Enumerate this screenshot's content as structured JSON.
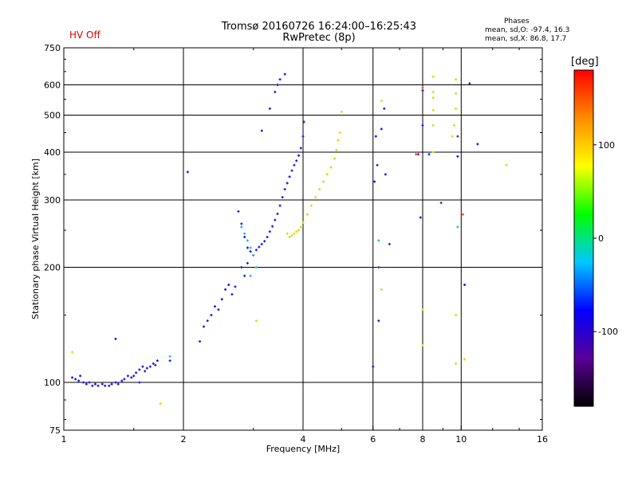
{
  "header": {
    "title": "Tromsø 20160726 16:24:00–16:25:43",
    "subtitle": "RwPretec (8p)",
    "hv_status": "HV Off",
    "hv_color": "#e00000"
  },
  "phase_box": {
    "heading": "Phases",
    "o_line": "mean, sd,O: -97.4, 16.3",
    "x_line": "mean, sd,X:  86.8, 17.7"
  },
  "chart_data": {
    "type": "scatter",
    "title": "Tromsø 20160726 16:24:00–16:25:43",
    "subtitle": "RwPretec (8p)",
    "xlabel": "Frequency [MHz]",
    "ylabel": "Stationary phase Virtual Height [km]",
    "x_scale": "log2",
    "y_scale": "log",
    "xlim": [
      1,
      16
    ],
    "ylim": [
      75,
      750
    ],
    "x_ticks": [
      1,
      2,
      4,
      6,
      8,
      10,
      16
    ],
    "y_ticks": [
      75,
      100,
      200,
      300,
      400,
      500,
      600,
      750
    ],
    "grid": true,
    "colorbar": {
      "title": "[deg]",
      "range": [
        -180,
        180
      ],
      "ticks": [
        -100,
        0,
        100
      ],
      "palette": [
        "#000000",
        "#5a0096",
        "#0000ff",
        "#00c8ff",
        "#00ff00",
        "#ffff00",
        "#ff8c00",
        "#ff0000"
      ]
    },
    "series": [
      {
        "color": "#1a1ae6",
        "points": [
          [
            1.05,
            103
          ],
          [
            1.07,
            102
          ],
          [
            1.09,
            101
          ],
          [
            1.1,
            104
          ],
          [
            1.12,
            100
          ],
          [
            1.14,
            99
          ],
          [
            1.16,
            100
          ],
          [
            1.18,
            98
          ],
          [
            1.2,
            99
          ],
          [
            1.22,
            98
          ],
          [
            1.25,
            99
          ],
          [
            1.27,
            98
          ],
          [
            1.3,
            98
          ],
          [
            1.32,
            99
          ],
          [
            1.35,
            100
          ],
          [
            1.37,
            99
          ],
          [
            1.4,
            101
          ],
          [
            1.42,
            102
          ],
          [
            1.45,
            104
          ],
          [
            1.48,
            103
          ],
          [
            1.5,
            104
          ],
          [
            1.52,
            106
          ],
          [
            1.55,
            108
          ],
          [
            1.58,
            110
          ],
          [
            1.6,
            107
          ],
          [
            1.62,
            109
          ],
          [
            1.65,
            110
          ],
          [
            1.68,
            112
          ],
          [
            1.7,
            111
          ],
          [
            1.72,
            114
          ],
          [
            1.35,
            130
          ],
          [
            1.55,
            100
          ],
          [
            1.85,
            114
          ],
          [
            2.2,
            128
          ],
          [
            2.25,
            140
          ],
          [
            2.3,
            145
          ],
          [
            2.35,
            150
          ],
          [
            2.4,
            158
          ],
          [
            2.45,
            155
          ],
          [
            2.5,
            165
          ],
          [
            2.55,
            175
          ],
          [
            2.6,
            180
          ],
          [
            2.65,
            170
          ],
          [
            2.7,
            178
          ],
          [
            2.8,
            200
          ],
          [
            2.85,
            190
          ],
          [
            2.9,
            205
          ],
          [
            2.75,
            280
          ],
          [
            2.8,
            260
          ],
          [
            2.85,
            240
          ],
          [
            2.9,
            225
          ],
          [
            2.95,
            220
          ],
          [
            3.0,
            215
          ],
          [
            3.05,
            222
          ],
          [
            3.1,
            226
          ],
          [
            3.15,
            230
          ],
          [
            3.2,
            234
          ],
          [
            3.25,
            240
          ],
          [
            3.3,
            248
          ],
          [
            3.35,
            256
          ],
          [
            3.4,
            266
          ],
          [
            3.45,
            276
          ],
          [
            3.5,
            290
          ],
          [
            3.55,
            305
          ],
          [
            3.6,
            320
          ],
          [
            3.65,
            332
          ],
          [
            3.7,
            345
          ],
          [
            3.75,
            358
          ],
          [
            3.8,
            370
          ],
          [
            3.85,
            380
          ],
          [
            3.9,
            392
          ],
          [
            3.95,
            410
          ],
          [
            4.0,
            440
          ],
          [
            4.02,
            480
          ],
          [
            3.6,
            640
          ],
          [
            3.5,
            620
          ],
          [
            3.45,
            600
          ],
          [
            3.4,
            575
          ],
          [
            3.3,
            520
          ],
          [
            3.15,
            455
          ],
          [
            2.05,
            355
          ],
          [
            6.0,
            110
          ],
          [
            6.05,
            335
          ],
          [
            6.1,
            440
          ],
          [
            6.15,
            370
          ],
          [
            6.3,
            460
          ],
          [
            6.4,
            520
          ],
          [
            6.45,
            350
          ],
          [
            6.6,
            230
          ],
          [
            7.9,
            270
          ],
          [
            8.0,
            580
          ],
          [
            8.3,
            395
          ],
          [
            8.0,
            470
          ],
          [
            10.5,
            605
          ],
          [
            10.2,
            180
          ],
          [
            11.0,
            420
          ],
          [
            9.8,
            390
          ],
          [
            6.2,
            145
          ]
        ]
      },
      {
        "color": "#d7dc00",
        "points": [
          [
            3.65,
            245
          ],
          [
            3.7,
            240
          ],
          [
            3.75,
            242
          ],
          [
            3.8,
            245
          ],
          [
            3.85,
            248
          ],
          [
            3.9,
            250
          ],
          [
            3.95,
            255
          ],
          [
            4.0,
            262
          ],
          [
            4.1,
            275
          ],
          [
            4.2,
            290
          ],
          [
            4.3,
            305
          ],
          [
            4.4,
            320
          ],
          [
            4.5,
            335
          ],
          [
            4.6,
            350
          ],
          [
            4.7,
            365
          ],
          [
            4.8,
            385
          ],
          [
            4.85,
            405
          ],
          [
            4.9,
            430
          ],
          [
            4.95,
            450
          ],
          [
            5.0,
            510
          ],
          [
            1.75,
            88
          ],
          [
            1.05,
            120
          ],
          [
            6.3,
            545
          ],
          [
            6.3,
            175
          ],
          [
            8.0,
            155
          ],
          [
            8.0,
            125
          ],
          [
            8.5,
            575
          ],
          [
            8.5,
            555
          ],
          [
            8.5,
            515
          ],
          [
            8.5,
            470
          ],
          [
            8.5,
            400
          ],
          [
            8.5,
            630
          ],
          [
            9.7,
            620
          ],
          [
            9.7,
            570
          ],
          [
            9.7,
            520
          ],
          [
            9.6,
            470
          ],
          [
            9.7,
            150
          ],
          [
            9.7,
            112
          ],
          [
            10.2,
            115
          ],
          [
            13.0,
            370
          ],
          [
            3.05,
            145
          ],
          [
            9.5,
            440
          ]
        ]
      },
      {
        "color": "#1eb4e6",
        "points": [
          [
            2.8,
            255
          ],
          [
            2.85,
            245
          ],
          [
            2.9,
            235
          ],
          [
            2.95,
            225
          ],
          [
            3.0,
            215
          ],
          [
            3.05,
            200
          ],
          [
            2.95,
            190
          ],
          [
            6.2,
            235
          ],
          [
            9.8,
            255
          ],
          [
            1.85,
            117
          ]
        ]
      },
      {
        "color": "#6a1e9a",
        "points": [
          [
            6.2,
            200
          ],
          [
            8.9,
            295
          ],
          [
            9.8,
            440
          ],
          [
            7.8,
            395
          ]
        ]
      },
      {
        "color": "#ff5000",
        "points": [
          [
            8.0,
            590
          ],
          [
            10.1,
            275
          ],
          [
            7.7,
            395
          ]
        ]
      }
    ]
  }
}
